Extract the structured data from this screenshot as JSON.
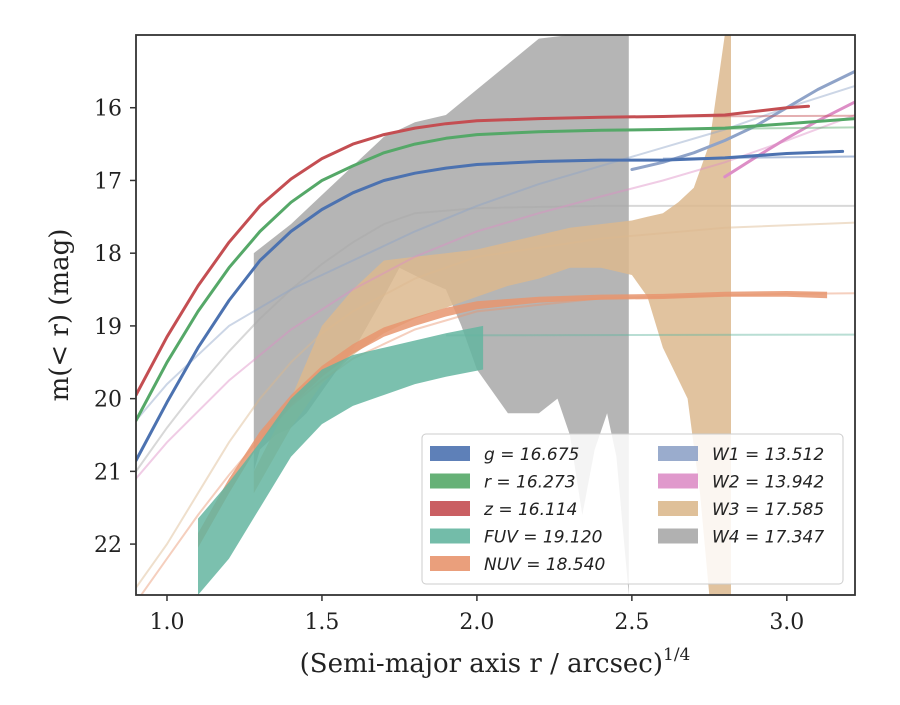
{
  "chart_data": {
    "type": "area",
    "xlabel_main": "(Semi-major axis r / arcsec)",
    "xlabel_sup": "1/4",
    "ylabel": "m(< r) (mag)",
    "xlim": [
      0.9,
      3.22
    ],
    "ylim": [
      22.7,
      15.0
    ],
    "y_inverted": true,
    "x_ticks": [
      1.0,
      1.5,
      2.0,
      2.5,
      3.0
    ],
    "x_tick_labels": [
      "1.0",
      "1.5",
      "2.0",
      "2.5",
      "3.0"
    ],
    "y_ticks": [
      16,
      17,
      18,
      19,
      20,
      21,
      22
    ],
    "y_tick_labels": [
      "16",
      "17",
      "18",
      "19",
      "20",
      "21",
      "22"
    ],
    "legend_position": "lower-right",
    "series": [
      {
        "name": "g = 16.675",
        "color": "#4c72b0",
        "band_width": 0.06,
        "x": [
          0.9,
          1.0,
          1.1,
          1.2,
          1.3,
          1.4,
          1.5,
          1.6,
          1.7,
          1.8,
          1.9,
          2.0,
          2.2,
          2.4,
          2.6,
          2.8,
          3.0,
          3.18
        ],
        "y": [
          20.85,
          20.05,
          19.3,
          18.65,
          18.1,
          17.7,
          17.4,
          17.17,
          17.0,
          16.9,
          16.83,
          16.78,
          16.74,
          16.72,
          16.72,
          16.69,
          16.63,
          16.6
        ],
        "model_x": [
          2.6,
          3.22
        ],
        "model_y": [
          16.7,
          16.67
        ]
      },
      {
        "name": "r = 16.273",
        "color": "#55a868",
        "band_width": 0.06,
        "x": [
          0.9,
          1.0,
          1.1,
          1.2,
          1.3,
          1.4,
          1.5,
          1.6,
          1.7,
          1.8,
          1.9,
          2.0,
          2.2,
          2.4,
          2.6,
          2.8,
          3.0,
          3.22
        ],
        "y": [
          20.3,
          19.5,
          18.8,
          18.2,
          17.7,
          17.3,
          17.0,
          16.8,
          16.62,
          16.5,
          16.42,
          16.37,
          16.33,
          16.31,
          16.3,
          16.28,
          16.22,
          16.15
        ],
        "model_x": [
          2.6,
          3.22
        ],
        "model_y": [
          16.3,
          16.27
        ]
      },
      {
        "name": "z = 16.114",
        "color": "#c44e52",
        "band_width": 0.06,
        "x": [
          0.9,
          1.0,
          1.1,
          1.2,
          1.3,
          1.4,
          1.5,
          1.6,
          1.7,
          1.8,
          1.9,
          2.0,
          2.2,
          2.4,
          2.6,
          2.8,
          3.0,
          3.07
        ],
        "y": [
          19.95,
          19.15,
          18.45,
          17.85,
          17.35,
          16.98,
          16.7,
          16.5,
          16.37,
          16.28,
          16.22,
          16.18,
          16.15,
          16.13,
          16.12,
          16.1,
          16.0,
          15.98
        ],
        "model_x": [
          2.6,
          3.22
        ],
        "model_y": [
          16.12,
          16.11
        ]
      },
      {
        "name": "FUV = 19.120",
        "color": "#64b5a0",
        "x": [
          1.1,
          1.2,
          1.3,
          1.4,
          1.5,
          1.6,
          1.7,
          1.8,
          1.9,
          2.02
        ],
        "y_low": [
          21.65,
          21.15,
          20.6,
          20.0,
          19.6,
          19.4,
          19.3,
          19.2,
          19.1,
          19.0
        ],
        "y_high": [
          22.7,
          22.2,
          21.5,
          20.8,
          20.35,
          20.1,
          19.95,
          19.8,
          19.7,
          19.6
        ],
        "model_x": [
          1.9,
          3.22
        ],
        "model_y": [
          19.13,
          19.12
        ]
      },
      {
        "name": "NUV = 18.540",
        "color": "#e8956e",
        "x": [
          1.1,
          1.2,
          1.3,
          1.4,
          1.5,
          1.6,
          1.7,
          1.8,
          1.9,
          2.0,
          2.2,
          2.4,
          2.6,
          2.8,
          3.0,
          3.13
        ],
        "y_low": [
          21.85,
          21.1,
          20.45,
          19.95,
          19.55,
          19.25,
          19.02,
          18.88,
          18.75,
          18.66,
          18.6,
          18.57,
          18.56,
          18.53,
          18.52,
          18.53
        ],
        "y_high": [
          22.05,
          21.3,
          20.6,
          20.1,
          19.7,
          19.38,
          19.15,
          19.0,
          18.87,
          18.77,
          18.68,
          18.64,
          18.63,
          18.6,
          18.6,
          18.62
        ],
        "model_x": [
          0.9,
          1.0,
          1.1,
          1.2,
          1.3,
          1.4,
          1.5,
          1.6,
          1.8,
          2.0,
          2.4,
          3.0,
          3.22
        ],
        "model_y": [
          22.8,
          22.2,
          21.6,
          21.05,
          20.55,
          20.1,
          19.75,
          19.45,
          19.05,
          18.8,
          18.62,
          18.56,
          18.55
        ]
      },
      {
        "name": "W1 = 13.512",
        "color": "#8fa3c8",
        "x": [
          2.5,
          2.6,
          2.7,
          2.8,
          2.9,
          3.0,
          3.1,
          3.22
        ],
        "y": [
          16.85,
          16.75,
          16.62,
          16.45,
          16.25,
          16.0,
          15.75,
          15.5
        ],
        "model_x": [
          0.9,
          1.0,
          1.2,
          1.4,
          1.6,
          1.8,
          2.0,
          2.2,
          2.4,
          2.6,
          2.8,
          3.0,
          3.22
        ],
        "model_y": [
          20.3,
          19.8,
          19.0,
          18.5,
          18.1,
          17.7,
          17.35,
          17.05,
          16.8,
          16.55,
          16.3,
          16.0,
          15.7
        ]
      },
      {
        "name": "W2 = 13.942",
        "color": "#dd8ec6",
        "x": [
          2.8,
          2.9,
          3.0,
          3.1,
          3.22
        ],
        "y": [
          16.95,
          16.68,
          16.42,
          16.18,
          15.92
        ],
        "model_x": [
          0.9,
          1.0,
          1.2,
          1.4,
          1.6,
          1.8,
          2.0,
          2.2,
          2.4,
          2.6,
          2.8,
          3.0,
          3.22
        ],
        "model_y": [
          21.1,
          20.6,
          19.75,
          19.05,
          18.5,
          18.05,
          17.7,
          17.45,
          17.22,
          17.0,
          16.75,
          16.45,
          16.1
        ]
      },
      {
        "name": "W3 = 17.585",
        "color": "#dcb98e",
        "x_upper": [
          1.28,
          1.4,
          1.5,
          1.6,
          1.7,
          1.8,
          1.9,
          2.0,
          2.1,
          2.2,
          2.3,
          2.4,
          2.5,
          2.55,
          2.6,
          2.65,
          2.7,
          2.75,
          2.8,
          2.82
        ],
        "y_upper": [
          21.0,
          20.0,
          19.0,
          18.5,
          18.1,
          18.05,
          18.0,
          17.95,
          17.85,
          17.75,
          17.65,
          17.6,
          17.55,
          17.5,
          17.45,
          17.3,
          17.1,
          16.5,
          15.0,
          15.0
        ],
        "x_lower": [
          2.82,
          2.78,
          2.75,
          2.72,
          2.68,
          2.6,
          2.55,
          2.5,
          2.4,
          2.3,
          2.2,
          2.1,
          2.0,
          1.9,
          1.8,
          1.7,
          1.6,
          1.5,
          1.4,
          1.28
        ],
        "y_lower": [
          22.7,
          22.7,
          22.7,
          21.3,
          20.0,
          19.3,
          18.6,
          18.3,
          18.2,
          18.2,
          18.35,
          18.45,
          18.6,
          18.75,
          18.9,
          19.1,
          19.4,
          19.8,
          20.4,
          21.3
        ],
        "model_x": [
          0.9,
          1.0,
          1.1,
          1.2,
          1.3,
          1.4,
          1.5,
          1.6,
          1.8,
          2.0,
          2.4,
          2.8,
          3.22
        ],
        "model_y": [
          22.6,
          22.0,
          21.3,
          20.6,
          20.0,
          19.5,
          19.1,
          18.8,
          18.35,
          18.05,
          17.8,
          17.65,
          17.58
        ]
      },
      {
        "name": "W4 = 17.347",
        "color": "#a8a8a8",
        "x_upper": [
          1.28,
          1.4,
          1.5,
          1.6,
          1.7,
          1.8,
          1.9,
          2.0,
          2.1,
          2.2,
          2.3,
          2.4,
          2.49
        ],
        "y_upper": [
          18.0,
          17.6,
          17.2,
          16.8,
          16.4,
          16.2,
          16.1,
          15.75,
          15.4,
          15.05,
          15.0,
          15.0,
          15.0
        ],
        "x_lower": [
          2.49,
          2.45,
          2.42,
          2.38,
          2.34,
          2.3,
          2.26,
          2.2,
          2.1,
          2.05,
          2.0,
          1.95,
          1.9,
          1.82,
          1.75,
          1.7,
          1.62,
          1.55,
          1.5,
          1.45,
          1.4,
          1.35,
          1.3,
          1.28
        ],
        "y_lower": [
          22.7,
          20.8,
          20.2,
          20.7,
          21.6,
          20.5,
          20.0,
          20.2,
          20.2,
          19.9,
          19.6,
          19.0,
          18.5,
          18.35,
          18.2,
          18.6,
          19.2,
          19.6,
          19.9,
          20.2,
          20.4,
          20.5,
          20.7,
          21.0
        ],
        "model_x": [
          0.9,
          1.0,
          1.1,
          1.2,
          1.3,
          1.4,
          1.5,
          1.6,
          1.7,
          1.8,
          2.0,
          2.4,
          3.22
        ],
        "model_y": [
          21.0,
          20.4,
          19.85,
          19.35,
          18.9,
          18.5,
          18.15,
          17.85,
          17.6,
          17.45,
          17.38,
          17.35,
          17.35
        ]
      }
    ]
  }
}
